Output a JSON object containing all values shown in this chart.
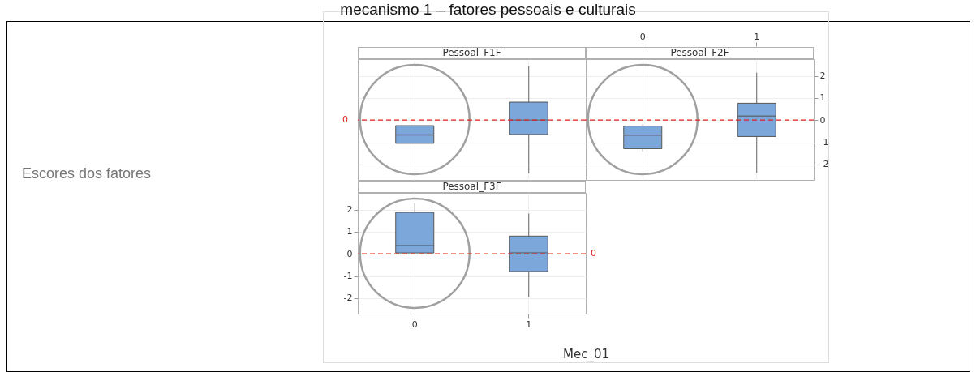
{
  "chart_data": [
    {
      "type": "box",
      "title": "Pessoal_F1F",
      "annotations": [
        "mecanismo 1 – fatores pessoais e culturais"
      ],
      "ylabel": "Escores dos fatores",
      "categories": [
        "0",
        "1"
      ],
      "series": [
        {
          "color": "#7ba7db",
          "boxes": [
            {
              "low": -1.05,
              "q1": -1.05,
              "median": -0.67,
              "q3": -0.25,
              "high": -0.25
            },
            {
              "low": -2.4,
              "q1": -0.65,
              "median": 0,
              "q3": 0.81,
              "high": 2.44
            }
          ]
        }
      ],
      "ylim": [
        -2.7,
        2.75
      ],
      "yticks": [
        -2,
        -1,
        0,
        1,
        2
      ],
      "grid": true,
      "tick_labels": false,
      "ref_lines": [
        {
          "axis": "y",
          "value": 0,
          "label": "0",
          "color": "#e02020",
          "line_style": "dashed"
        }
      ]
    },
    {
      "type": "box",
      "title": "Pessoal_F2F",
      "categories": [
        "0",
        "1"
      ],
      "series": [
        {
          "color": "#7ba7db",
          "boxes": [
            {
              "low": -1.42,
              "q1": -1.29,
              "median": -0.68,
              "q3": -0.27,
              "high": -0.18
            },
            {
              "low": -2.38,
              "q1": -0.74,
              "median": 0.18,
              "q3": 0.76,
              "high": 2.14
            }
          ]
        }
      ],
      "ylim": [
        -2.7,
        2.75
      ],
      "yticks": [
        -2,
        -1,
        0,
        1,
        2
      ],
      "grid": true,
      "ref_lines": [
        {
          "axis": "y",
          "value": 0,
          "color": "#e02020",
          "line_style": "dashed"
        }
      ]
    },
    {
      "type": "box",
      "title": "Pessoal_F3F",
      "xlabel": "Mec_01",
      "categories": [
        "0",
        "1"
      ],
      "series": [
        {
          "color": "#7ba7db",
          "boxes": [
            {
              "low": 0.04,
              "q1": 0.04,
              "median": 0.38,
              "q3": 1.87,
              "high": 2.28
            },
            {
              "low": -1.95,
              "q1": -0.8,
              "median": 0.05,
              "q3": 0.8,
              "high": 1.82
            }
          ]
        }
      ],
      "ylim": [
        -2.7,
        2.75
      ],
      "yticks": [
        -2,
        -1,
        0,
        1,
        2
      ],
      "grid": true,
      "ref_lines": [
        {
          "axis": "y",
          "value": 0,
          "label": "0",
          "color": "#e02020",
          "line_style": "dashed"
        }
      ]
    }
  ]
}
